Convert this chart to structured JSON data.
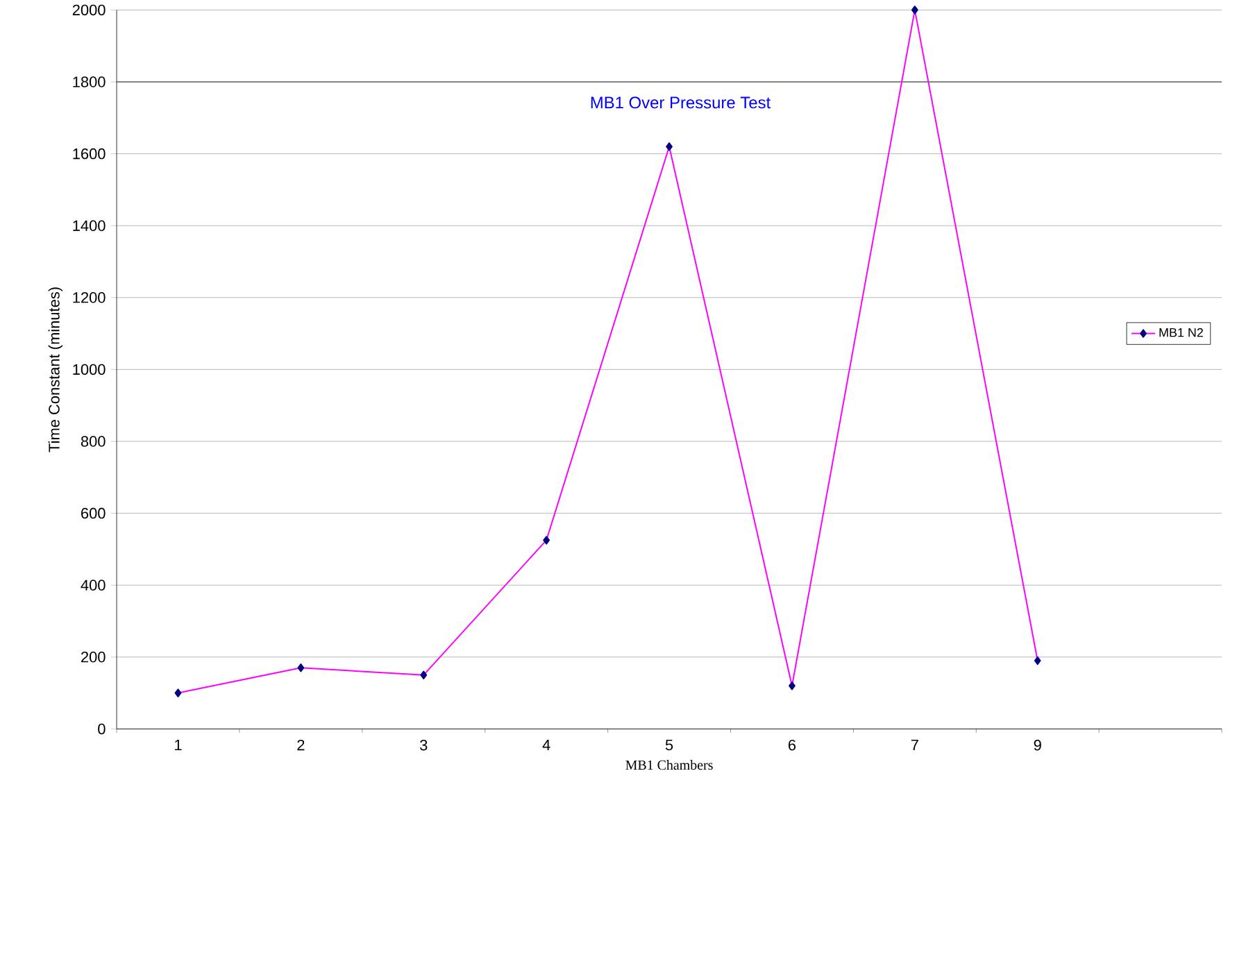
{
  "chart_data": {
    "type": "line",
    "title": "MB1 Over Pressure Test",
    "xlabel": "MB1 Chambers",
    "ylabel": "Time Constant (minutes)",
    "categories": [
      "1",
      "2",
      "3",
      "4",
      "5",
      "6",
      "7",
      "9",
      null
    ],
    "series": [
      {
        "name": "MB1 N2",
        "color": "#ff00ff",
        "values": [
          100,
          170,
          150,
          525,
          1620,
          120,
          2000,
          190,
          null
        ]
      }
    ],
    "ylim": [
      0,
      2000
    ],
    "yticks": [
      0,
      200,
      400,
      600,
      800,
      1000,
      1200,
      1400,
      1600,
      1800,
      2000
    ],
    "grid": "y",
    "legend": "right",
    "marker": "diamond",
    "line_style": "solid",
    "ref_lines": [
      {
        "axis": "y",
        "value": 1800,
        "color": "#000000"
      }
    ]
  }
}
